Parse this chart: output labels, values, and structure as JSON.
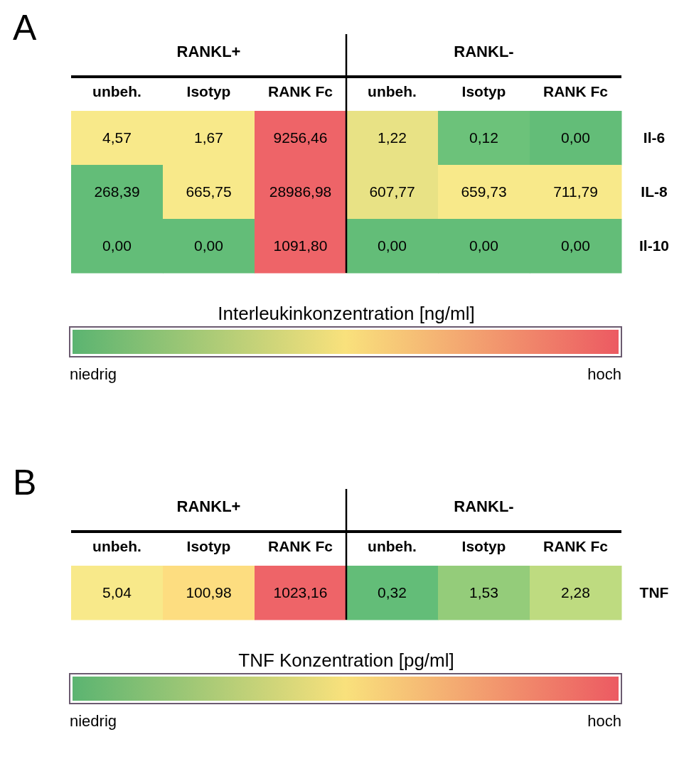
{
  "chart_data": [
    {
      "type": "heatmap",
      "title": "A",
      "annotations": [
        "RANKL+",
        "RANKL-",
        "niedrig",
        "hoch"
      ],
      "categories": [
        "unbeh.",
        "Isotyp",
        "RANK Fc",
        "unbeh.",
        "Isotyp",
        "RANK Fc"
      ],
      "y_categories": [
        "Il-6",
        "IL-8",
        "Il-10"
      ],
      "cells": [
        [
          4.57,
          1.67,
          9256.46,
          1.22,
          0.12,
          0.0
        ],
        [
          268.39,
          665.75,
          28986.98,
          607.77,
          659.73,
          711.79
        ],
        [
          0.0,
          0.0,
          1091.8,
          0.0,
          0.0,
          0.0
        ]
      ],
      "cell_labels": [
        [
          "4,57",
          "1,67",
          "9256,46",
          "1,22",
          "0,12",
          "0,00"
        ],
        [
          "268,39",
          "665,75",
          "28986,98",
          "607,77",
          "659,73",
          "711,79"
        ],
        [
          "0,00",
          "0,00",
          "1091,80",
          "0,00",
          "0,00",
          "0,00"
        ]
      ],
      "colors": [
        [
          "#f8e98a",
          "#f8e98a",
          "#ee6468",
          "#e8e285",
          "#6cc27a",
          "#63bd78"
        ],
        [
          "#63bd78",
          "#f8e98a",
          "#ee6468",
          "#e8e285",
          "#f8e98a",
          "#f8e98a"
        ],
        [
          "#63bd78",
          "#63bd78",
          "#ee6468",
          "#63bd78",
          "#63bd78",
          "#63bd78"
        ]
      ],
      "clabel": "Interleukinkonzentration [ng/ml]"
    },
    {
      "type": "heatmap",
      "title": "B",
      "annotations": [
        "RANKL+",
        "RANKL-",
        "niedrig",
        "hoch"
      ],
      "categories": [
        "unbeh.",
        "Isotyp",
        "RANK Fc",
        "unbeh.",
        "Isotyp",
        "RANK Fc"
      ],
      "y_categories": [
        "TNF"
      ],
      "cells": [
        [
          5.04,
          100.98,
          1023.16,
          0.32,
          1.53,
          2.28
        ]
      ],
      "cell_labels": [
        [
          "5,04",
          "100,98",
          "1023,16",
          "0,32",
          "1,53",
          "2,28"
        ]
      ],
      "colors": [
        [
          "#f8e98a",
          "#fddd80",
          "#ee6468",
          "#63bd78",
          "#94cc7a",
          "#bedb80"
        ]
      ],
      "clabel": "TNF Konzentration [pg/ml]"
    }
  ]
}
